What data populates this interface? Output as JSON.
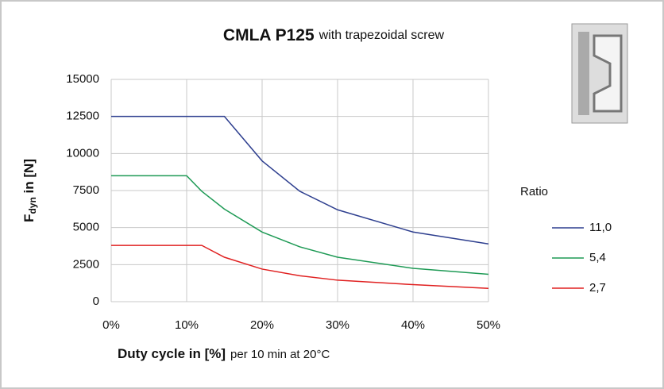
{
  "chart_data": {
    "type": "line",
    "title": "CMLA P125",
    "subtitle": "with trapezoidal screw",
    "ylabel": {
      "main": "F",
      "sub": "dyn",
      "rest": " in [N]"
    },
    "xlabel": "Duty cycle in [%]",
    "xlabel_note": "per 10 min at 20°C",
    "legend_title": "Ratio",
    "xlim": [
      0,
      50
    ],
    "xticks": [
      {
        "value": 0,
        "label": "0%"
      },
      {
        "value": 10,
        "label": "10%"
      },
      {
        "value": 20,
        "label": "20%"
      },
      {
        "value": 30,
        "label": "30%"
      },
      {
        "value": 40,
        "label": "40%"
      },
      {
        "value": 50,
        "label": "50%"
      }
    ],
    "ylim": [
      0,
      15000
    ],
    "yticks": [
      0,
      2500,
      5000,
      7500,
      10000,
      12500,
      15000
    ],
    "grid": true,
    "series": [
      {
        "name": "11,0",
        "color": "#2e3f8f",
        "x": [
          0,
          10,
          15,
          20,
          25,
          30,
          40,
          50
        ],
        "values": [
          12500,
          12500,
          12500,
          9500,
          7450,
          6200,
          4700,
          3900
        ]
      },
      {
        "name": "5,4",
        "color": "#1e9a55",
        "x": [
          0,
          10,
          12,
          15,
          20,
          25,
          30,
          40,
          50
        ],
        "values": [
          8500,
          8500,
          7450,
          6250,
          4700,
          3700,
          3000,
          2250,
          1850
        ]
      },
      {
        "name": "2,7",
        "color": "#e02020",
        "x": [
          0,
          10,
          12,
          15,
          20,
          25,
          30,
          40,
          50
        ],
        "values": [
          3800,
          3800,
          3800,
          3000,
          2200,
          1750,
          1450,
          1150,
          900
        ]
      }
    ]
  }
}
